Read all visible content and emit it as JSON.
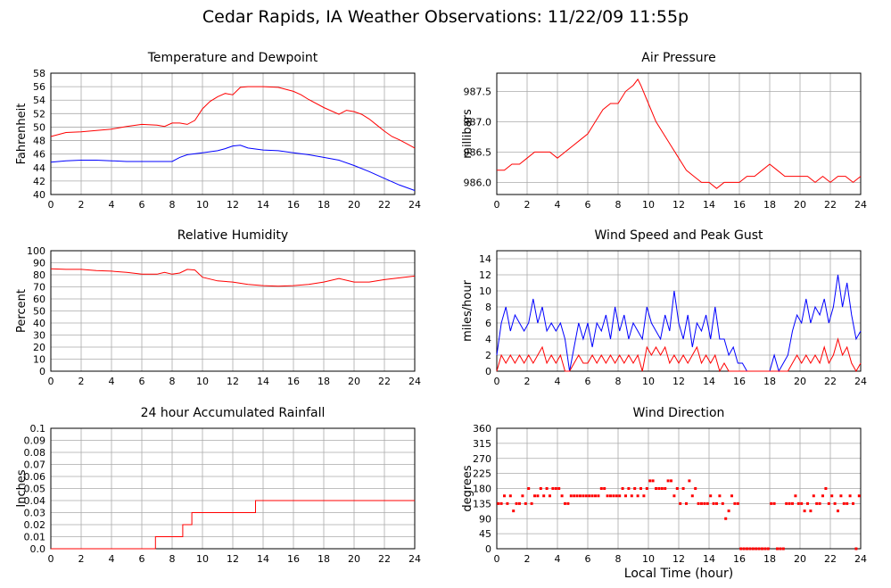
{
  "page": {
    "title": "Cedar Rapids, IA Weather Observations: 11/22/09 11:55p",
    "xaxis_title": "Local Time (hour)"
  },
  "colors": {
    "red": "#ff0000",
    "blue": "#0000ff",
    "grid": "#aaaaaa"
  },
  "chart_data": [
    {
      "id": "temp",
      "type": "line",
      "title": "Temperature and Dewpoint",
      "ylabel": "Fahrenheit",
      "xlabel": "",
      "xlim": [
        0,
        24
      ],
      "ylim": [
        40,
        58
      ],
      "xticks": [
        0,
        2,
        4,
        6,
        8,
        10,
        12,
        14,
        16,
        18,
        20,
        22,
        24
      ],
      "yticks": [
        40,
        42,
        44,
        46,
        48,
        50,
        52,
        54,
        56,
        58
      ],
      "series": [
        {
          "color": "#ff0000",
          "x": [
            0,
            1,
            2,
            3,
            4,
            5,
            6,
            7,
            7.5,
            8,
            8.5,
            9,
            9.5,
            10,
            10.5,
            11,
            11.5,
            12,
            12.5,
            13,
            14,
            15,
            15.5,
            16,
            16.5,
            17,
            18,
            19,
            19.5,
            20,
            20.5,
            21,
            21.5,
            22,
            22.5,
            23,
            23.5,
            24
          ],
          "y": [
            48.6,
            49.2,
            49.3,
            49.5,
            49.7,
            50.1,
            50.4,
            50.3,
            50.1,
            50.6,
            50.6,
            50.4,
            51.0,
            52.7,
            53.8,
            54.5,
            55.0,
            54.8,
            55.9,
            56.0,
            56.0,
            55.9,
            55.6,
            55.3,
            54.8,
            54.1,
            52.9,
            51.9,
            52.5,
            52.3,
            51.9,
            51.2,
            50.3,
            49.4,
            48.6,
            48.1,
            47.5,
            46.9
          ]
        },
        {
          "color": "#0000ff",
          "x": [
            0,
            1,
            2,
            3,
            4,
            5,
            6,
            7,
            8,
            8.5,
            9,
            10,
            11,
            11.5,
            12,
            12.5,
            13,
            14,
            15,
            16,
            17,
            18,
            19,
            20,
            21,
            22,
            23,
            24
          ],
          "y": [
            44.8,
            45.0,
            45.1,
            45.1,
            45.0,
            44.9,
            44.9,
            44.9,
            44.9,
            45.5,
            45.9,
            46.2,
            46.5,
            46.8,
            47.2,
            47.3,
            46.9,
            46.6,
            46.5,
            46.2,
            45.9,
            45.5,
            45.1,
            44.3,
            43.4,
            42.4,
            41.4,
            40.6
          ]
        }
      ]
    },
    {
      "id": "pres",
      "type": "line",
      "title": "Air Pressure",
      "ylabel": "millibars",
      "xlabel": "",
      "xlim": [
        0,
        24
      ],
      "ylim": [
        985.8,
        987.8
      ],
      "xticks": [
        0,
        2,
        4,
        6,
        8,
        10,
        12,
        14,
        16,
        18,
        20,
        22,
        24
      ],
      "yticks": [
        986.0,
        986.5,
        987.0,
        987.5
      ],
      "ytick_labels": [
        "986.0",
        "986.5",
        "987.0",
        "987.5"
      ],
      "series": [
        {
          "color": "#ff0000",
          "x": [
            0,
            0.5,
            1,
            1.5,
            2,
            2.5,
            3,
            3.5,
            4,
            4.5,
            5,
            5.5,
            6,
            6.5,
            7,
            7.5,
            8,
            8.5,
            9,
            9.3,
            9.5,
            10,
            10.5,
            11,
            11.5,
            12,
            12.5,
            13,
            13.5,
            14,
            14.5,
            15,
            15.5,
            16,
            16.5,
            17,
            17.5,
            18,
            18.5,
            19,
            19.5,
            20,
            20.5,
            21,
            21.5,
            22,
            22.5,
            23,
            23.5,
            24
          ],
          "y": [
            986.2,
            986.2,
            986.3,
            986.3,
            986.4,
            986.5,
            986.5,
            986.5,
            986.4,
            986.5,
            986.6,
            986.7,
            986.8,
            987.0,
            987.2,
            987.3,
            987.3,
            987.5,
            987.6,
            987.7,
            987.6,
            987.3,
            987.0,
            986.8,
            986.6,
            986.4,
            986.2,
            986.1,
            986.0,
            986.0,
            985.9,
            986.0,
            986.0,
            986.0,
            986.1,
            986.1,
            986.2,
            986.3,
            986.2,
            986.1,
            986.1,
            986.1,
            986.1,
            986.0,
            986.1,
            986.0,
            986.1,
            986.1,
            986.0,
            986.1
          ]
        }
      ]
    },
    {
      "id": "rh",
      "type": "line",
      "title": "Relative Humidity",
      "ylabel": "Percent",
      "xlabel": "",
      "xlim": [
        0,
        24
      ],
      "ylim": [
        0,
        100
      ],
      "xticks": [
        0,
        2,
        4,
        6,
        8,
        10,
        12,
        14,
        16,
        18,
        20,
        22,
        24
      ],
      "yticks": [
        0,
        10,
        20,
        30,
        40,
        50,
        60,
        70,
        80,
        90,
        100
      ],
      "series": [
        {
          "color": "#ff0000",
          "x": [
            0,
            1,
            2,
            3,
            4,
            5,
            6,
            7,
            7.5,
            8,
            8.5,
            9,
            9.5,
            10,
            11,
            12,
            13,
            14,
            15,
            16,
            17,
            18,
            19,
            20,
            21,
            22,
            23,
            24
          ],
          "y": [
            85,
            84.5,
            84.5,
            83.5,
            83,
            82,
            80.5,
            80.5,
            82,
            80.5,
            81.5,
            84.5,
            84,
            78,
            75,
            74,
            72,
            71,
            70.5,
            71,
            72,
            74,
            77,
            74,
            74,
            76,
            77.5,
            79
          ]
        }
      ]
    },
    {
      "id": "wind",
      "type": "line",
      "title": "Wind Speed and Peak Gust",
      "ylabel": "miles/hour",
      "xlabel": "",
      "xlim": [
        0,
        24
      ],
      "ylim": [
        0,
        15
      ],
      "xticks": [
        0,
        2,
        4,
        6,
        8,
        10,
        12,
        14,
        16,
        18,
        20,
        22,
        24
      ],
      "yticks": [
        0,
        2,
        4,
        6,
        8,
        10,
        12,
        14
      ],
      "series": [
        {
          "color": "#0000ff",
          "x": [
            0,
            0.3,
            0.6,
            0.9,
            1.2,
            1.5,
            1.8,
            2.1,
            2.4,
            2.7,
            3.0,
            3.3,
            3.6,
            3.9,
            4.2,
            4.5,
            4.8,
            5.1,
            5.4,
            5.7,
            6.0,
            6.3,
            6.6,
            6.9,
            7.2,
            7.5,
            7.8,
            8.1,
            8.4,
            8.7,
            9.0,
            9.3,
            9.6,
            9.9,
            10.2,
            10.5,
            10.8,
            11.1,
            11.4,
            11.7,
            12.0,
            12.3,
            12.6,
            12.9,
            13.2,
            13.5,
            13.8,
            14.1,
            14.4,
            14.7,
            15.0,
            15.3,
            15.6,
            15.9,
            16.2,
            16.5,
            16.8,
            17.1,
            17.4,
            17.7,
            18.0,
            18.3,
            18.6,
            18.9,
            19.2,
            19.5,
            19.8,
            20.1,
            20.4,
            20.7,
            21.0,
            21.3,
            21.6,
            21.9,
            22.2,
            22.5,
            22.8,
            23.1,
            23.4,
            23.7,
            24.0
          ],
          "y": [
            2,
            6,
            8,
            5,
            7,
            6,
            5,
            6,
            9,
            6,
            8,
            5,
            6,
            5,
            6,
            4,
            0,
            3,
            6,
            4,
            6,
            3,
            6,
            5,
            7,
            4,
            8,
            5,
            7,
            4,
            6,
            5,
            4,
            8,
            6,
            5,
            4,
            7,
            5,
            10,
            6,
            4,
            7,
            3,
            6,
            5,
            7,
            4,
            8,
            4,
            4,
            2,
            3,
            1,
            1,
            0,
            0,
            0,
            0,
            0,
            0,
            2,
            0,
            1,
            2,
            5,
            7,
            6,
            9,
            6,
            8,
            7,
            9,
            6,
            8,
            12,
            8,
            11,
            7,
            4,
            5
          ]
        },
        {
          "color": "#ff0000",
          "x": [
            0,
            0.3,
            0.6,
            0.9,
            1.2,
            1.5,
            1.8,
            2.1,
            2.4,
            2.7,
            3.0,
            3.3,
            3.6,
            3.9,
            4.2,
            4.5,
            4.8,
            5.1,
            5.4,
            5.7,
            6.0,
            6.3,
            6.6,
            6.9,
            7.2,
            7.5,
            7.8,
            8.1,
            8.4,
            8.7,
            9.0,
            9.3,
            9.6,
            9.9,
            10.2,
            10.5,
            10.8,
            11.1,
            11.4,
            11.7,
            12.0,
            12.3,
            12.6,
            12.9,
            13.2,
            13.5,
            13.8,
            14.1,
            14.4,
            14.7,
            15.0,
            15.3,
            15.6,
            15.9,
            16.2,
            16.5,
            16.8,
            17.1,
            17.4,
            17.7,
            18.0,
            18.3,
            18.6,
            18.9,
            19.2,
            19.5,
            19.8,
            20.1,
            20.4,
            20.7,
            21.0,
            21.3,
            21.6,
            21.9,
            22.2,
            22.5,
            22.8,
            23.1,
            23.4,
            23.7,
            24.0
          ],
          "y": [
            0,
            2,
            1,
            2,
            1,
            2,
            1,
            2,
            1,
            2,
            3,
            1,
            2,
            1,
            2,
            0,
            0,
            1,
            2,
            1,
            1,
            2,
            1,
            2,
            1,
            2,
            1,
            2,
            1,
            2,
            1,
            2,
            0,
            3,
            2,
            3,
            2,
            3,
            1,
            2,
            1,
            2,
            1,
            2,
            3,
            1,
            2,
            1,
            2,
            0,
            1,
            0,
            0,
            0,
            0,
            0,
            0,
            0,
            0,
            0,
            0,
            0,
            0,
            0,
            0,
            1,
            2,
            1,
            2,
            1,
            2,
            1,
            3,
            1,
            2,
            4,
            2,
            3,
            1,
            0,
            1
          ]
        }
      ]
    },
    {
      "id": "rain",
      "type": "line",
      "title": "24 hour Accumulated Rainfall",
      "ylabel": "Inches",
      "xlabel": "",
      "xlim": [
        0,
        24
      ],
      "ylim": [
        0,
        0.1
      ],
      "xticks": [
        0,
        2,
        4,
        6,
        8,
        10,
        12,
        14,
        16,
        18,
        20,
        22,
        24
      ],
      "yticks": [
        0,
        0.01,
        0.02,
        0.03,
        0.04,
        0.05,
        0.06,
        0.07,
        0.08,
        0.09,
        0.1
      ],
      "ytick_labels": [
        "0.0",
        "0.01",
        "0.02",
        "0.03",
        "0.04",
        "0.05",
        "0.06",
        "0.07",
        "0.08",
        "0.09",
        "0.1"
      ],
      "series": [
        {
          "color": "#ff0000",
          "step": true,
          "x": [
            0,
            6.9,
            8.7,
            9.3,
            13.5,
            24
          ],
          "y": [
            0,
            0.01,
            0.02,
            0.03,
            0.04,
            0.04
          ]
        }
      ]
    },
    {
      "id": "dir",
      "type": "scatter",
      "title": "Wind Direction",
      "ylabel": "degrees",
      "xlabel": "Local Time (hour)",
      "xlim": [
        0,
        24
      ],
      "ylim": [
        0,
        360
      ],
      "xticks": [
        0,
        2,
        4,
        6,
        8,
        10,
        12,
        14,
        16,
        18,
        20,
        22,
        24
      ],
      "yticks": [
        0,
        45,
        90,
        135,
        180,
        225,
        270,
        315,
        360
      ],
      "series": [
        {
          "color": "#ff0000",
          "x": [
            0.1,
            0.3,
            0.5,
            0.7,
            0.9,
            1.1,
            1.3,
            1.5,
            1.7,
            1.9,
            2.1,
            2.3,
            2.5,
            2.7,
            2.9,
            3.1,
            3.3,
            3.5,
            3.7,
            3.9,
            4.1,
            4.3,
            4.5,
            4.7,
            4.9,
            5.1,
            5.3,
            5.5,
            5.7,
            5.9,
            6.1,
            6.3,
            6.5,
            6.7,
            6.9,
            7.1,
            7.3,
            7.5,
            7.7,
            7.9,
            8.1,
            8.3,
            8.5,
            8.7,
            8.9,
            9.1,
            9.3,
            9.5,
            9.7,
            9.9,
            10.1,
            10.3,
            10.5,
            10.7,
            10.9,
            11.1,
            11.3,
            11.5,
            11.7,
            11.9,
            12.1,
            12.3,
            12.5,
            12.7,
            12.9,
            13.1,
            13.3,
            13.5,
            13.7,
            13.9,
            14.1,
            14.3,
            14.5,
            14.7,
            14.9,
            15.1,
            15.3,
            15.5,
            15.7,
            15.9,
            16.1,
            16.3,
            16.5,
            16.7,
            16.9,
            17.1,
            17.3,
            17.5,
            17.7,
            17.9,
            18.1,
            18.3,
            18.5,
            18.7,
            18.9,
            19.1,
            19.3,
            19.5,
            19.7,
            19.9,
            20.1,
            20.3,
            20.5,
            20.7,
            20.9,
            21.1,
            21.3,
            21.5,
            21.7,
            21.9,
            22.1,
            22.3,
            22.5,
            22.7,
            22.9,
            23.1,
            23.3,
            23.5,
            23.7,
            23.9
          ],
          "y": [
            135,
            135,
            158,
            135,
            158,
            113,
            135,
            135,
            158,
            135,
            180,
            135,
            158,
            158,
            180,
            158,
            180,
            158,
            180,
            180,
            180,
            158,
            135,
            135,
            158,
            158,
            158,
            158,
            158,
            158,
            158,
            158,
            158,
            158,
            180,
            180,
            158,
            158,
            158,
            158,
            158,
            180,
            158,
            180,
            158,
            180,
            158,
            180,
            158,
            180,
            203,
            203,
            180,
            180,
            180,
            180,
            203,
            203,
            158,
            180,
            135,
            180,
            135,
            203,
            158,
            180,
            135,
            135,
            135,
            135,
            158,
            135,
            135,
            158,
            135,
            90,
            113,
            158,
            135,
            135,
            0,
            0,
            0,
            0,
            0,
            0,
            0,
            0,
            0,
            0,
            135,
            135,
            0,
            0,
            0,
            135,
            135,
            135,
            158,
            135,
            135,
            113,
            135,
            113,
            158,
            135,
            135,
            158,
            180,
            135,
            158,
            135,
            113,
            158,
            135,
            135,
            158,
            135,
            0,
            158
          ]
        }
      ]
    }
  ]
}
